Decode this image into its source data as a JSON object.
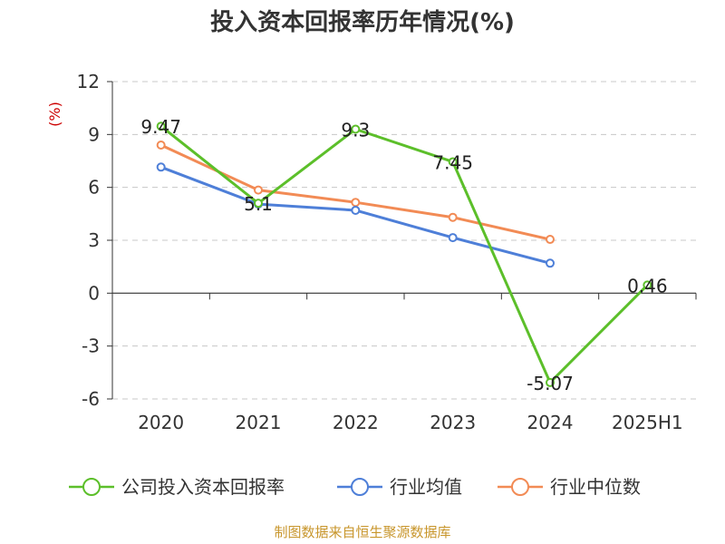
{
  "chart_data": {
    "type": "line",
    "title": "投入资本回报率历年情况(%)",
    "ylabel": "(%)",
    "categories": [
      "2020",
      "2021",
      "2022",
      "2023",
      "2024",
      "2025H1"
    ],
    "ylim": [
      -6,
      12
    ],
    "yticks": [
      12,
      9,
      6,
      3,
      0,
      -3,
      -6
    ],
    "ytick_labels": [
      "12",
      "9",
      "6",
      "3",
      "0",
      "-3",
      "-6"
    ],
    "grid": true,
    "legend_position": "bottom",
    "series": [
      {
        "name": "公司投入资本回报率",
        "color": "#5cbf2a",
        "values": [
          9.47,
          5.1,
          9.3,
          7.45,
          -5.07,
          0.46
        ],
        "labels": [
          "9.47",
          "5.1",
          "9.3",
          "7.45",
          "-5.07",
          "0.46"
        ]
      },
      {
        "name": "行业均值",
        "color": "#4e7fd8",
        "values": [
          7.15,
          5.05,
          4.7,
          3.15,
          1.7,
          null
        ]
      },
      {
        "name": "行业中位数",
        "color": "#f28b55",
        "values": [
          8.4,
          5.85,
          5.15,
          4.3,
          3.05,
          null
        ]
      }
    ],
    "source": "制图数据来自恒生聚源数据库"
  }
}
